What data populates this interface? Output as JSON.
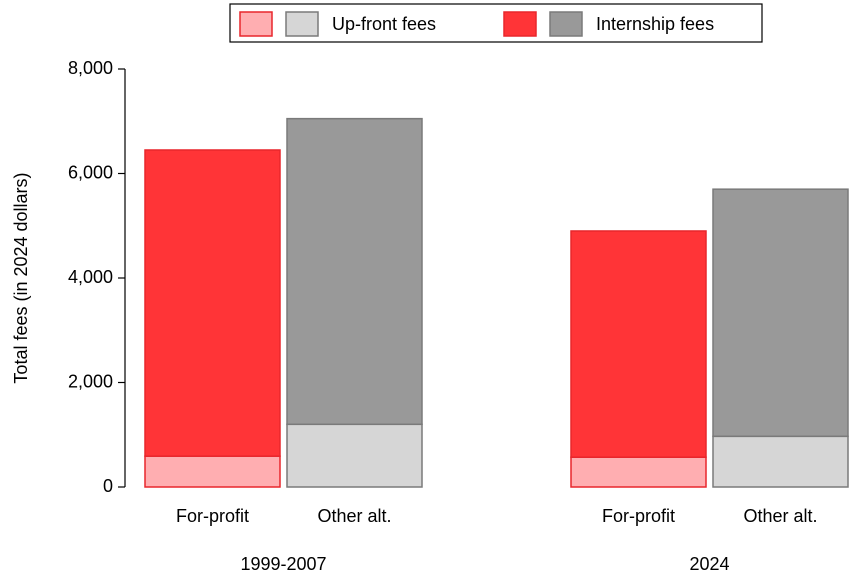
{
  "chart_data": {
    "type": "grouped-stacked-bar",
    "y_label": "Total fees (in 2024 dollars)",
    "groups": [
      "1999-2007",
      "2024"
    ],
    "categories": [
      "For-profit",
      "Other alt.",
      "For-profit",
      "Other alt."
    ],
    "series": [
      {
        "name": "Up-front fees",
        "colors": [
          "#ffaeb1",
          "#d6d6d6"
        ],
        "values": [
          590,
          1200,
          570,
          970
        ]
      },
      {
        "name": "Internship fees",
        "colors": [
          "#ff3437",
          "#999999"
        ],
        "values": [
          5860,
          5850,
          4330,
          4730
        ]
      }
    ],
    "ylim": [
      0,
      8000
    ],
    "yticks": [
      0,
      {
        "value": 2000,
        "label": "2,000"
      },
      {
        "value": 4000,
        "label": "4,000"
      },
      {
        "value": 6000,
        "label": "6,000"
      },
      {
        "value": 8000,
        "label": "8,000"
      }
    ],
    "grid": false
  }
}
